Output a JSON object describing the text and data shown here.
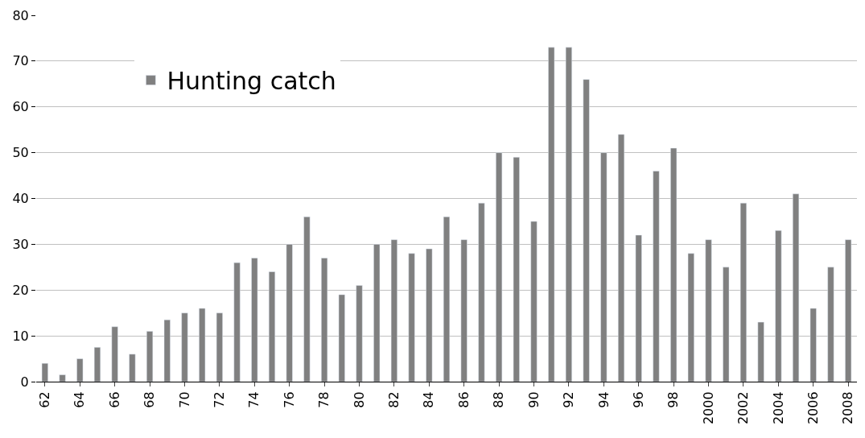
{
  "chart_data": {
    "type": "bar",
    "categories": [
      "62",
      null,
      "64",
      null,
      "66",
      null,
      "68",
      null,
      "70",
      null,
      "72",
      null,
      "74",
      null,
      "76",
      null,
      "78",
      null,
      "80",
      null,
      "82",
      null,
      "84",
      null,
      "86",
      null,
      "88",
      null,
      "90",
      null,
      "92",
      null,
      "94",
      null,
      "96",
      null,
      "98",
      null,
      "2000",
      null,
      "2002",
      null,
      "2004",
      null,
      "2006",
      null,
      "2008"
    ],
    "series": [
      {
        "name": "Hunting catch",
        "color": "#808080",
        "values": [
          4,
          1.5,
          5,
          7.5,
          12,
          6,
          11,
          13.5,
          15,
          16,
          15,
          26,
          27,
          24,
          30,
          36,
          27,
          19,
          21,
          30,
          31,
          28,
          29,
          36,
          31,
          39,
          50,
          49,
          35,
          73,
          73,
          66,
          50,
          54,
          32,
          46,
          51,
          28,
          31,
          25,
          39,
          13,
          33,
          41,
          16,
          25,
          31
        ]
      }
    ],
    "ylim": [
      0,
      80
    ],
    "yticks": [
      0,
      10,
      20,
      30,
      40,
      50,
      60,
      70,
      80
    ],
    "grid": "y",
    "legend": "top left"
  }
}
